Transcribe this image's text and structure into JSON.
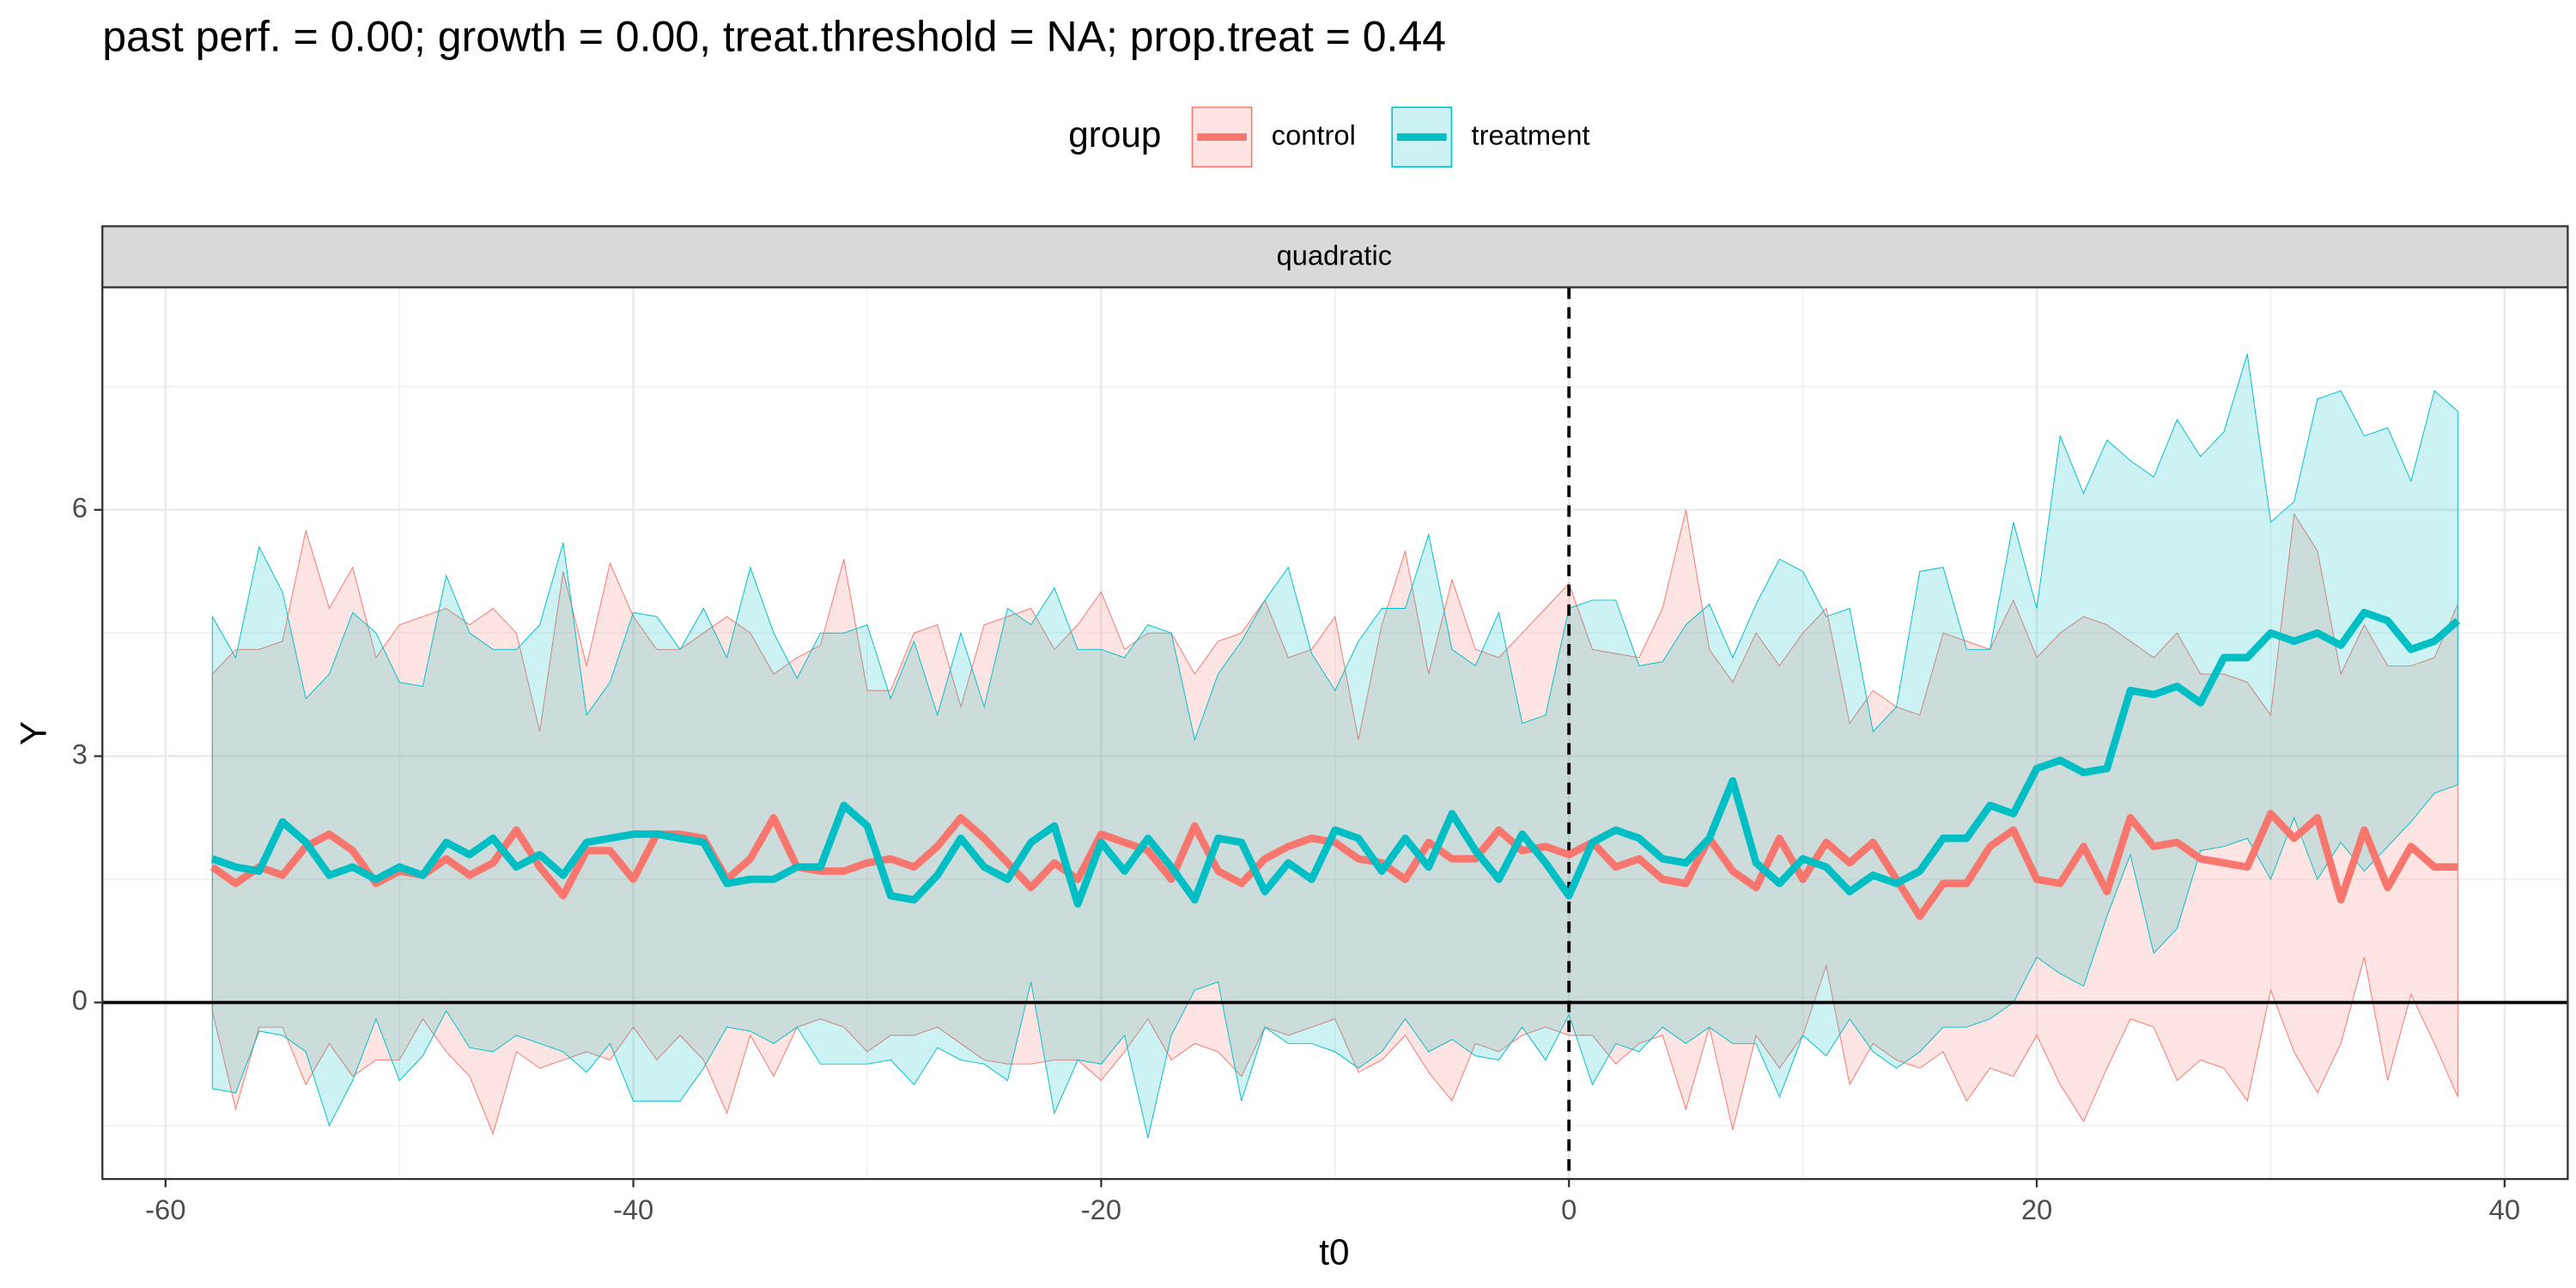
{
  "chart_data": {
    "type": "line",
    "title": "past perf. = 0.00; growth = 0.00,  treat.threshold = NA;  prop.treat = 0.44",
    "facet_label": "quadratic",
    "x_label": "t0",
    "y_label": "Y",
    "legend_title": "group",
    "legend_position": "top",
    "xlim": [
      -62.7,
      42.7
    ],
    "ylim": [
      -2.15,
      8.71
    ],
    "xticks": [
      -60,
      -40,
      -20,
      0,
      20,
      40
    ],
    "yticks": [
      0,
      3,
      6
    ],
    "grid": true,
    "vline": 0,
    "hline": 0,
    "x": [
      -58,
      -57,
      -56,
      -55,
      -54,
      -53,
      -52,
      -51,
      -50,
      -49,
      -48,
      -47,
      -46,
      -45,
      -44,
      -43,
      -42,
      -41,
      -40,
      -39,
      -38,
      -37,
      -36,
      -35,
      -34,
      -33,
      -32,
      -31,
      -30,
      -29,
      -28,
      -27,
      -26,
      -25,
      -24,
      -23,
      -22,
      -21,
      -20,
      -19,
      -18,
      -17,
      -16,
      -15,
      -14,
      -13,
      -12,
      -11,
      -10,
      -9,
      -8,
      -7,
      -6,
      -5,
      -4,
      -3,
      -2,
      -1,
      0,
      1,
      2,
      3,
      4,
      5,
      6,
      7,
      8,
      9,
      10,
      11,
      12,
      13,
      14,
      15,
      16,
      17,
      18,
      19,
      20,
      21,
      22,
      23,
      24,
      25,
      26,
      27,
      28,
      29,
      30,
      31,
      32,
      33,
      34,
      35,
      36,
      37,
      38
    ],
    "series": [
      {
        "name": "control",
        "color": "#F8766D",
        "values": [
          1.65,
          1.45,
          1.65,
          1.55,
          1.9,
          2.05,
          1.85,
          1.45,
          1.6,
          1.55,
          1.75,
          1.55,
          1.7,
          2.1,
          1.65,
          1.3,
          1.85,
          1.85,
          1.5,
          2.05,
          2.05,
          2.0,
          1.5,
          1.75,
          2.25,
          1.65,
          1.6,
          1.6,
          1.7,
          1.75,
          1.65,
          1.9,
          2.25,
          2.0,
          1.7,
          1.4,
          1.7,
          1.5,
          2.05,
          1.95,
          1.85,
          1.5,
          2.15,
          1.6,
          1.45,
          1.75,
          1.9,
          2.0,
          1.95,
          1.75,
          1.7,
          1.5,
          1.95,
          1.75,
          1.75,
          2.1,
          1.85,
          1.9,
          1.8,
          1.95,
          1.65,
          1.75,
          1.5,
          1.45,
          2.0,
          1.6,
          1.4,
          2.0,
          1.5,
          1.95,
          1.7,
          1.95,
          1.5,
          1.05,
          1.45,
          1.45,
          1.9,
          2.1,
          1.5,
          1.45,
          1.9,
          1.35,
          2.25,
          1.9,
          1.95,
          1.75,
          1.7,
          1.65,
          2.3,
          2.0,
          2.25,
          1.25,
          2.1,
          1.4,
          1.9,
          1.65,
          1.65
        ],
        "upper": [
          4.0,
          4.3,
          4.3,
          4.4,
          5.75,
          4.8,
          5.3,
          4.2,
          4.6,
          4.7,
          4.8,
          4.6,
          4.8,
          4.5,
          3.3,
          5.25,
          4.1,
          5.35,
          4.7,
          4.3,
          4.3,
          4.5,
          4.7,
          4.5,
          4.0,
          4.2,
          4.35,
          5.4,
          3.8,
          3.8,
          4.5,
          4.6,
          3.6,
          4.6,
          4.7,
          4.8,
          4.3,
          4.6,
          5.0,
          4.3,
          4.5,
          4.5,
          4.0,
          4.4,
          4.5,
          4.9,
          4.2,
          4.3,
          4.7,
          3.2,
          4.6,
          5.5,
          4.0,
          5.15,
          4.3,
          4.2,
          4.5,
          4.8,
          5.1,
          4.3,
          4.25,
          4.2,
          4.8,
          6.0,
          4.3,
          3.9,
          4.5,
          4.1,
          4.5,
          4.8,
          3.4,
          3.8,
          3.6,
          3.5,
          4.5,
          4.4,
          4.3,
          4.9,
          4.2,
          4.5,
          4.7,
          4.6,
          4.4,
          4.2,
          4.5,
          4.0,
          4.0,
          3.9,
          3.5,
          5.95,
          5.5,
          4.0,
          4.6,
          4.1,
          4.1,
          4.2,
          4.85
        ],
        "lower": [
          -0.1,
          -1.3,
          -0.3,
          -0.3,
          -1.0,
          -0.5,
          -0.9,
          -0.7,
          -0.7,
          -0.2,
          -0.6,
          -0.9,
          -1.6,
          -0.6,
          -0.8,
          -0.7,
          -0.6,
          -0.7,
          -0.3,
          -0.7,
          -0.4,
          -0.7,
          -1.35,
          -0.4,
          -0.9,
          -0.3,
          -0.2,
          -0.3,
          -0.6,
          -0.4,
          -0.4,
          -0.3,
          -0.5,
          -0.7,
          -0.75,
          -0.75,
          -0.7,
          -0.7,
          -0.95,
          -0.6,
          -0.2,
          -0.7,
          -0.5,
          -0.6,
          -0.9,
          -0.3,
          -0.4,
          -0.3,
          -0.2,
          -0.85,
          -0.7,
          -0.4,
          -0.85,
          -1.2,
          -0.5,
          -0.6,
          -0.4,
          -0.3,
          -0.4,
          -0.4,
          -0.75,
          -0.5,
          -0.4,
          -1.3,
          -0.3,
          -1.55,
          -0.4,
          -0.8,
          -0.4,
          0.45,
          -1.0,
          -0.5,
          -0.7,
          -0.8,
          -0.6,
          -1.2,
          -0.8,
          -0.9,
          -0.4,
          -1.0,
          -1.45,
          -0.8,
          -0.2,
          -0.3,
          -0.95,
          -0.7,
          -0.8,
          -1.2,
          0.15,
          -0.6,
          -1.1,
          -0.5,
          0.55,
          -0.95,
          0.1,
          -0.5,
          -1.15
        ]
      },
      {
        "name": "treatment",
        "color": "#00BFC4",
        "values": [
          1.75,
          1.65,
          1.6,
          2.2,
          1.95,
          1.55,
          1.65,
          1.5,
          1.65,
          1.55,
          1.95,
          1.8,
          2.0,
          1.65,
          1.8,
          1.55,
          1.95,
          2.0,
          2.05,
          2.05,
          2.0,
          1.95,
          1.45,
          1.5,
          1.5,
          1.65,
          1.65,
          2.4,
          2.15,
          1.3,
          1.25,
          1.55,
          2.0,
          1.65,
          1.5,
          1.95,
          2.15,
          1.2,
          1.95,
          1.6,
          2.0,
          1.65,
          1.25,
          2.0,
          1.95,
          1.35,
          1.7,
          1.5,
          2.1,
          2.0,
          1.6,
          2.0,
          1.65,
          2.3,
          1.85,
          1.5,
          2.05,
          1.7,
          1.3,
          1.95,
          2.1,
          2.0,
          1.75,
          1.7,
          2.0,
          2.7,
          1.7,
          1.45,
          1.75,
          1.65,
          1.35,
          1.55,
          1.45,
          1.6,
          2.0,
          2.0,
          2.4,
          2.3,
          2.85,
          2.95,
          2.8,
          2.85,
          3.8,
          3.75,
          3.85,
          3.65,
          4.2,
          4.2,
          4.5,
          4.4,
          4.5,
          4.35,
          4.75,
          4.65,
          4.3,
          4.4,
          4.65
        ],
        "upper": [
          4.7,
          4.2,
          5.55,
          5.0,
          3.7,
          4.0,
          4.75,
          4.5,
          3.9,
          3.85,
          5.2,
          4.5,
          4.3,
          4.3,
          4.6,
          5.6,
          3.5,
          3.9,
          4.75,
          4.7,
          4.3,
          4.8,
          4.2,
          5.3,
          4.5,
          3.95,
          4.5,
          4.5,
          4.6,
          3.7,
          4.4,
          3.5,
          4.5,
          3.6,
          4.8,
          4.6,
          5.05,
          4.3,
          4.3,
          4.2,
          4.6,
          4.5,
          3.2,
          4.0,
          4.4,
          4.9,
          5.3,
          4.25,
          3.8,
          4.4,
          4.8,
          4.8,
          5.7,
          4.3,
          4.1,
          4.75,
          3.4,
          3.5,
          4.8,
          4.9,
          4.9,
          4.1,
          4.15,
          4.6,
          4.85,
          4.2,
          4.85,
          5.4,
          5.25,
          4.7,
          4.8,
          3.3,
          3.6,
          5.25,
          5.3,
          4.3,
          4.3,
          5.85,
          4.8,
          6.9,
          6.2,
          6.85,
          6.6,
          6.4,
          7.1,
          6.65,
          6.95,
          7.9,
          5.85,
          6.1,
          7.35,
          7.45,
          6.9,
          7.0,
          6.35,
          7.45,
          7.2
        ],
        "lower": [
          -1.05,
          -1.1,
          -0.35,
          -0.4,
          -0.6,
          -1.5,
          -0.95,
          -0.2,
          -0.95,
          -0.65,
          -0.1,
          -0.55,
          -0.6,
          -0.4,
          -0.5,
          -0.6,
          -0.85,
          -0.5,
          -1.2,
          -1.2,
          -1.2,
          -0.8,
          -0.3,
          -0.35,
          -0.5,
          -0.3,
          -0.75,
          -0.75,
          -0.75,
          -0.7,
          -1.0,
          -0.55,
          -0.7,
          -0.75,
          -0.95,
          0.25,
          -1.35,
          -0.7,
          -0.75,
          -0.4,
          -1.65,
          -0.4,
          0.15,
          0.25,
          -1.2,
          -0.3,
          -0.5,
          -0.5,
          -0.6,
          -0.8,
          -0.6,
          -0.2,
          -0.6,
          -0.45,
          -0.65,
          -0.7,
          -0.3,
          -0.7,
          -0.15,
          -1.0,
          -0.5,
          -0.6,
          -0.3,
          -0.5,
          -0.3,
          -0.5,
          -0.5,
          -1.15,
          -0.4,
          -0.65,
          -0.2,
          -0.6,
          -0.8,
          -0.6,
          -0.3,
          -0.3,
          -0.2,
          0.0,
          0.55,
          0.35,
          0.2,
          1.05,
          1.8,
          0.6,
          0.9,
          1.85,
          1.9,
          2.0,
          1.5,
          2.25,
          1.5,
          1.95,
          1.6,
          1.9,
          2.2,
          2.55,
          2.65
        ]
      }
    ]
  }
}
